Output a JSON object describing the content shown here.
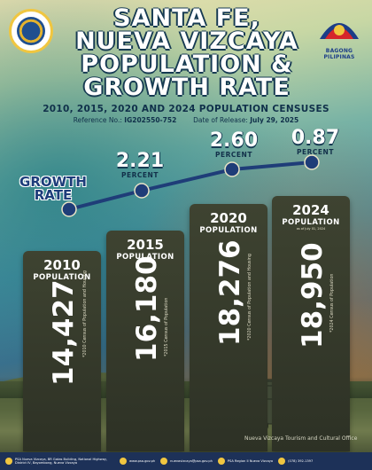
{
  "header": {
    "title_lines": [
      "SANTA FE,",
      "NUEVA VIZCAYA",
      "POPULATION &",
      "GROWTH RATE"
    ],
    "subtitle": "2010, 2015, 2020 AND 2024 POPULATION CENSUSES",
    "reference_label": "Reference No.:",
    "reference_no": "IG202550-752",
    "release_label": "Date of Release:",
    "release_date": "July 29, 2025",
    "right_logo_caption": "BAGONG PILIPINAS"
  },
  "growth": {
    "label_line1": "GROWTH",
    "label_line2": "RATE",
    "unit": "PERCENT",
    "rates": [
      {
        "value": "2.21"
      },
      {
        "value": "2.60"
      },
      {
        "value": "0.87"
      }
    ]
  },
  "bars": [
    {
      "year": "2010",
      "word": "POPULATION",
      "value": "14,427",
      "source": "*2010 Census of Population and Housing",
      "note": ""
    },
    {
      "year": "2015",
      "word": "POPULATION",
      "value": "16,180",
      "source": "*2015 Census of Population",
      "note": ""
    },
    {
      "year": "2020",
      "word": "POPULATION",
      "value": "18,276",
      "source": "*2020 Census of Population and Housing",
      "note": ""
    },
    {
      "year": "2024",
      "word": "POPULATION",
      "value": "18,950",
      "source": "*2024 Census of Population",
      "note": "as of July 01, 2024"
    }
  ],
  "chart_data": {
    "type": "bar",
    "categories": [
      "2010",
      "2015",
      "2020",
      "2024"
    ],
    "series": [
      {
        "values": [
          14427,
          16180,
          18276,
          18950
        ]
      }
    ],
    "growth_rates_percent": [
      2.21,
      2.6,
      0.87
    ]
  },
  "photo_credit": "Nueva Vizcaya Tourism and Cultural Office",
  "footer": {
    "address": "PSA Nueva Vizcaya, BR Gatas Building, National Highway, District IV, Bayombong, Nueva Vizcaya",
    "website": "www.psa.gov.ph",
    "email": "nuevavizcaya@psa.gov.ph",
    "facebook": "PSA Region II Nueva Vizcaya",
    "phone": "(078) 392-1397"
  },
  "colors": {
    "bar": "#363a2c",
    "footer": "#1d3158",
    "line": "#1f3d78",
    "accent": "#f0c640"
  }
}
